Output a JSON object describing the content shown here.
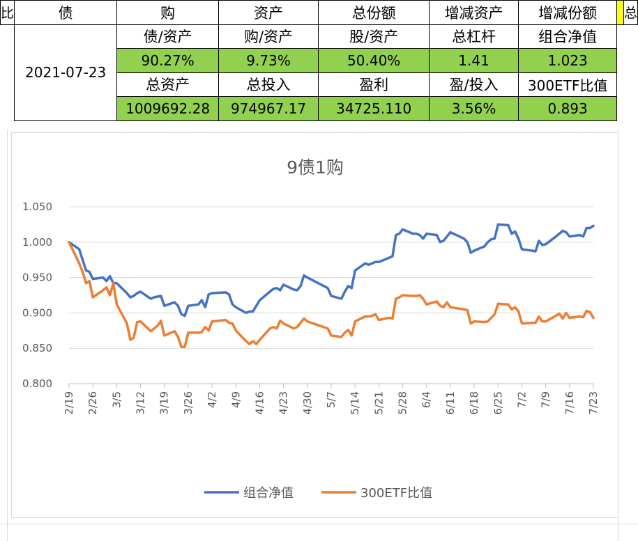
{
  "table": {
    "header": {
      "c0": "比",
      "c1": "债",
      "c2": "购",
      "c3": "资产",
      "c4": "总份额",
      "c5": "增减资产",
      "c6": "增减份额",
      "c7": "",
      "c8": "总"
    },
    "date": "2021-07-23",
    "labels1": [
      "债/资产",
      "购/资产",
      "股/资产",
      "总杠杆",
      "组合净值"
    ],
    "values1": [
      "90.27%",
      "9.73%",
      "50.40%",
      "1.41",
      "1.023"
    ],
    "labels2": [
      "总资产",
      "总投入",
      "盈利",
      "盈/投入",
      "300ETF比值"
    ],
    "values2": [
      "1009692.28",
      "974967.17",
      "34725.110",
      "3.56%",
      "0.893"
    ]
  },
  "colors": {
    "cell_green": "#92d050",
    "cell_yellow": "#ffff00",
    "series_blue": "#4472c4",
    "series_orange": "#ed7d31"
  },
  "chart_data": {
    "type": "line",
    "title": "9债1购",
    "xlabel": "",
    "ylabel": "",
    "ylim": [
      0.8,
      1.05
    ],
    "yticks": [
      "0.800",
      "0.850",
      "0.900",
      "0.950",
      "1.000",
      "1.050"
    ],
    "x_ticks": [
      "2/19",
      "2/26",
      "3/5",
      "3/12",
      "3/19",
      "3/26",
      "4/2",
      "4/9",
      "4/16",
      "4/23",
      "4/30",
      "5/7",
      "5/14",
      "5/21",
      "5/28",
      "6/4",
      "6/11",
      "6/18",
      "6/25",
      "7/2",
      "7/9",
      "7/16",
      "7/23"
    ],
    "x_start": "2/19",
    "x_end": "7/23",
    "grid": "horizontal",
    "legend": "bottom",
    "series": [
      {
        "name": "组合净值",
        "color": "#4472c4",
        "points": [
          [
            "2/19",
            1.0
          ],
          [
            "2/22",
            0.99
          ],
          [
            "2/24",
            0.96
          ],
          [
            "2/25",
            0.958
          ],
          [
            "2/26",
            0.948
          ],
          [
            "3/1",
            0.95
          ],
          [
            "3/2",
            0.945
          ],
          [
            "3/3",
            0.952
          ],
          [
            "3/4",
            0.942
          ],
          [
            "3/5",
            0.942
          ],
          [
            "3/8",
            0.928
          ],
          [
            "3/9",
            0.922
          ],
          [
            "3/10",
            0.924
          ],
          [
            "3/11",
            0.928
          ],
          [
            "3/12",
            0.93
          ],
          [
            "3/15",
            0.92
          ],
          [
            "3/16",
            0.922
          ],
          [
            "3/17",
            0.923
          ],
          [
            "3/18",
            0.924
          ],
          [
            "3/19",
            0.91
          ],
          [
            "3/22",
            0.915
          ],
          [
            "3/23",
            0.91
          ],
          [
            "3/24",
            0.898
          ],
          [
            "3/25",
            0.896
          ],
          [
            "3/26",
            0.91
          ],
          [
            "3/29",
            0.912
          ],
          [
            "3/30",
            0.918
          ],
          [
            "3/31",
            0.908
          ],
          [
            "4/1",
            0.926
          ],
          [
            "4/2",
            0.928
          ],
          [
            "4/6",
            0.929
          ],
          [
            "4/7",
            0.926
          ],
          [
            "4/8",
            0.912
          ],
          [
            "4/9",
            0.908
          ],
          [
            "4/12",
            0.9
          ],
          [
            "4/13",
            0.902
          ],
          [
            "4/14",
            0.902
          ],
          [
            "4/15",
            0.91
          ],
          [
            "4/16",
            0.918
          ],
          [
            "4/19",
            0.93
          ],
          [
            "4/20",
            0.934
          ],
          [
            "4/21",
            0.935
          ],
          [
            "4/22",
            0.932
          ],
          [
            "4/23",
            0.94
          ],
          [
            "4/26",
            0.933
          ],
          [
            "4/27",
            0.932
          ],
          [
            "4/28",
            0.938
          ],
          [
            "4/29",
            0.953
          ],
          [
            "4/30",
            0.95
          ],
          [
            "5/6",
            0.935
          ],
          [
            "5/7",
            0.924
          ],
          [
            "5/10",
            0.92
          ],
          [
            "5/11",
            0.93
          ],
          [
            "5/12",
            0.938
          ],
          [
            "5/13",
            0.935
          ],
          [
            "5/14",
            0.96
          ],
          [
            "5/17",
            0.97
          ],
          [
            "5/18",
            0.968
          ],
          [
            "5/19",
            0.97
          ],
          [
            "5/20",
            0.972
          ],
          [
            "5/21",
            0.972
          ],
          [
            "5/24",
            0.978
          ],
          [
            "5/25",
            0.98
          ],
          [
            "5/26",
            1.01
          ],
          [
            "5/27",
            1.012
          ],
          [
            "5/28",
            1.018
          ],
          [
            "5/31",
            1.012
          ],
          [
            "6/1",
            1.012
          ],
          [
            "6/2",
            1.01
          ],
          [
            "6/3",
            1.005
          ],
          [
            "6/4",
            1.012
          ],
          [
            "6/7",
            1.01
          ],
          [
            "6/8",
            1.0
          ],
          [
            "6/9",
            1.002
          ],
          [
            "6/10",
            1.008
          ],
          [
            "6/11",
            1.014
          ],
          [
            "6/15",
            1.005
          ],
          [
            "6/16",
            1.0
          ],
          [
            "6/17",
            0.985
          ],
          [
            "6/18",
            0.988
          ],
          [
            "6/21",
            0.994
          ],
          [
            "6/22",
            1.0
          ],
          [
            "6/23",
            1.004
          ],
          [
            "6/24",
            1.005
          ],
          [
            "6/25",
            1.025
          ],
          [
            "6/28",
            1.024
          ],
          [
            "6/29",
            1.012
          ],
          [
            "6/30",
            1.015
          ],
          [
            "7/1",
            1.005
          ],
          [
            "7/2",
            0.99
          ],
          [
            "7/5",
            0.988
          ],
          [
            "7/6",
            0.987
          ],
          [
            "7/7",
            1.002
          ],
          [
            "7/8",
            0.996
          ],
          [
            "7/9",
            0.997
          ],
          [
            "7/12",
            1.008
          ],
          [
            "7/13",
            1.012
          ],
          [
            "7/14",
            1.016
          ],
          [
            "7/15",
            1.014
          ],
          [
            "7/16",
            1.008
          ],
          [
            "7/19",
            1.01
          ],
          [
            "7/20",
            1.008
          ],
          [
            "7/21",
            1.02
          ],
          [
            "7/22",
            1.02
          ],
          [
            "7/23",
            1.023
          ]
        ]
      },
      {
        "name": "300ETF比值",
        "color": "#ed7d31",
        "points": [
          [
            "2/19",
            1.0
          ],
          [
            "2/22",
            0.97
          ],
          [
            "2/23",
            0.958
          ],
          [
            "2/24",
            0.942
          ],
          [
            "2/25",
            0.945
          ],
          [
            "2/26",
            0.922
          ],
          [
            "3/1",
            0.932
          ],
          [
            "3/2",
            0.936
          ],
          [
            "3/3",
            0.925
          ],
          [
            "3/4",
            0.942
          ],
          [
            "3/5",
            0.912
          ],
          [
            "3/8",
            0.885
          ],
          [
            "3/9",
            0.862
          ],
          [
            "3/10",
            0.865
          ],
          [
            "3/11",
            0.887
          ],
          [
            "3/12",
            0.888
          ],
          [
            "3/15",
            0.874
          ],
          [
            "3/16",
            0.878
          ],
          [
            "3/17",
            0.882
          ],
          [
            "3/18",
            0.889
          ],
          [
            "3/19",
            0.868
          ],
          [
            "3/22",
            0.874
          ],
          [
            "3/23",
            0.866
          ],
          [
            "3/24",
            0.852
          ],
          [
            "3/25",
            0.852
          ],
          [
            "3/26",
            0.872
          ],
          [
            "3/29",
            0.872
          ],
          [
            "3/30",
            0.873
          ],
          [
            "3/31",
            0.88
          ],
          [
            "4/1",
            0.875
          ],
          [
            "4/2",
            0.888
          ],
          [
            "4/6",
            0.89
          ],
          [
            "4/7",
            0.886
          ],
          [
            "4/8",
            0.885
          ],
          [
            "4/9",
            0.875
          ],
          [
            "4/12",
            0.86
          ],
          [
            "4/13",
            0.856
          ],
          [
            "4/14",
            0.86
          ],
          [
            "4/15",
            0.856
          ],
          [
            "4/16",
            0.862
          ],
          [
            "4/19",
            0.878
          ],
          [
            "4/20",
            0.88
          ],
          [
            "4/21",
            0.878
          ],
          [
            "4/22",
            0.889
          ],
          [
            "4/23",
            0.885
          ],
          [
            "4/26",
            0.878
          ],
          [
            "4/27",
            0.88
          ],
          [
            "4/28",
            0.886
          ],
          [
            "4/29",
            0.892
          ],
          [
            "4/30",
            0.888
          ],
          [
            "5/6",
            0.878
          ],
          [
            "5/7",
            0.868
          ],
          [
            "5/10",
            0.866
          ],
          [
            "5/11",
            0.872
          ],
          [
            "5/12",
            0.876
          ],
          [
            "5/13",
            0.868
          ],
          [
            "5/14",
            0.888
          ],
          [
            "5/17",
            0.895
          ],
          [
            "5/18",
            0.895
          ],
          [
            "5/19",
            0.896
          ],
          [
            "5/20",
            0.898
          ],
          [
            "5/21",
            0.89
          ],
          [
            "5/24",
            0.893
          ],
          [
            "5/25",
            0.892
          ],
          [
            "5/26",
            0.92
          ],
          [
            "5/27",
            0.922
          ],
          [
            "5/28",
            0.925
          ],
          [
            "5/31",
            0.924
          ],
          [
            "6/1",
            0.924
          ],
          [
            "6/2",
            0.925
          ],
          [
            "6/3",
            0.92
          ],
          [
            "6/4",
            0.912
          ],
          [
            "6/7",
            0.916
          ],
          [
            "6/8",
            0.91
          ],
          [
            "6/9",
            0.908
          ],
          [
            "6/10",
            0.915
          ],
          [
            "6/11",
            0.908
          ],
          [
            "6/15",
            0.905
          ],
          [
            "6/16",
            0.904
          ],
          [
            "6/17",
            0.885
          ],
          [
            "6/18",
            0.888
          ],
          [
            "6/21",
            0.887
          ],
          [
            "6/22",
            0.888
          ],
          [
            "6/23",
            0.893
          ],
          [
            "6/24",
            0.898
          ],
          [
            "6/25",
            0.913
          ],
          [
            "6/28",
            0.912
          ],
          [
            "6/29",
            0.905
          ],
          [
            "6/30",
            0.908
          ],
          [
            "7/1",
            0.902
          ],
          [
            "7/2",
            0.885
          ],
          [
            "7/5",
            0.886
          ],
          [
            "7/6",
            0.886
          ],
          [
            "7/7",
            0.895
          ],
          [
            "7/8",
            0.888
          ],
          [
            "7/9",
            0.888
          ],
          [
            "7/12",
            0.896
          ],
          [
            "7/13",
            0.899
          ],
          [
            "7/14",
            0.892
          ],
          [
            "7/15",
            0.9
          ],
          [
            "7/16",
            0.893
          ],
          [
            "7/19",
            0.895
          ],
          [
            "7/20",
            0.894
          ],
          [
            "7/21",
            0.903
          ],
          [
            "7/22",
            0.901
          ],
          [
            "7/23",
            0.893
          ]
        ]
      }
    ]
  }
}
